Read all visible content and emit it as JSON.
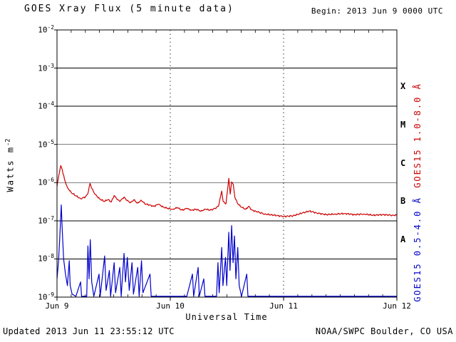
{
  "page": {
    "title": "GOES Xray Flux (5 minute data)",
    "begin_label": "Begin: 2013 Jun 9 0000 UTC",
    "updated_label": "Updated 2013 Jun 11 23:55:12 UTC",
    "credit_label": "NOAA/SWPC Boulder, CO USA"
  },
  "chart_data": {
    "type": "line",
    "title": "GOES Xray Flux (5 minute data)",
    "xlabel": "Universal Time",
    "ylabel_base": "Watts m",
    "ylabel_exp": "-2",
    "y_scale": "log",
    "xlim_hours": [
      0,
      72
    ],
    "ylim": [
      1e-09,
      0.01
    ],
    "x_ticks": {
      "hours": [
        0,
        24,
        48,
        72
      ],
      "labels": [
        "Jun 9",
        "Jun 10",
        "Jun 11",
        "Jun 12"
      ]
    },
    "y_ticks": {
      "base": "10",
      "values": [
        0.01,
        0.001,
        0.0001,
        1e-05,
        1e-06,
        1e-07,
        1e-08,
        1e-09
      ],
      "exponents": [
        "-2",
        "-3",
        "-4",
        "-5",
        "-6",
        "-7",
        "-8",
        "-9"
      ]
    },
    "flare_classes": [
      {
        "label": "X",
        "center_log10": -3.5
      },
      {
        "label": "M",
        "center_log10": -4.5
      },
      {
        "label": "C",
        "center_log10": -5.5
      },
      {
        "label": "B",
        "center_log10": -6.5
      },
      {
        "label": "A",
        "center_log10": -7.5
      }
    ],
    "grid": {
      "horizontal_solid_at_each_decade": true,
      "vertical_dashed_hours": [
        24,
        48
      ],
      "minor_tick_step_hours": 3
    },
    "series": [
      {
        "name": "GOES15 1.0-8.0 Å",
        "color": "#cc0000",
        "points": [
          [
            0,
            8e-07
          ],
          [
            0.4,
            1.6e-06
          ],
          [
            0.8,
            2.8e-06
          ],
          [
            1.1,
            2.2e-06
          ],
          [
            1.6,
            1.2e-06
          ],
          [
            2.2,
            7.5e-07
          ],
          [
            3.0,
            5.5e-07
          ],
          [
            4.0,
            4.5e-07
          ],
          [
            5.0,
            3.8e-07
          ],
          [
            6.0,
            4.2e-07
          ],
          [
            6.5,
            5e-07
          ],
          [
            7.0,
            9.5e-07
          ],
          [
            7.4,
            7e-07
          ],
          [
            8.0,
            5e-07
          ],
          [
            9.0,
            3.8e-07
          ],
          [
            10.0,
            3.2e-07
          ],
          [
            10.8,
            3.6e-07
          ],
          [
            11.5,
            3.1e-07
          ],
          [
            12.1,
            4.6e-07
          ],
          [
            12.6,
            3.8e-07
          ],
          [
            13.3,
            3.2e-07
          ],
          [
            14.2,
            4.2e-07
          ],
          [
            14.8,
            3.4e-07
          ],
          [
            15.6,
            3e-07
          ],
          [
            16.3,
            3.6e-07
          ],
          [
            17.0,
            2.9e-07
          ],
          [
            17.9,
            3.4e-07
          ],
          [
            18.6,
            2.8e-07
          ],
          [
            19.5,
            2.6e-07
          ],
          [
            20.5,
            2.4e-07
          ],
          [
            21.5,
            2.7e-07
          ],
          [
            22.5,
            2.3e-07
          ],
          [
            23.5,
            2.1e-07
          ],
          [
            24.5,
            2e-07
          ],
          [
            25.5,
            2.2e-07
          ],
          [
            26.5,
            1.9e-07
          ],
          [
            27.5,
            2.1e-07
          ],
          [
            28.5,
            1.9e-07
          ],
          [
            29.5,
            2e-07
          ],
          [
            30.5,
            1.8e-07
          ],
          [
            31.5,
            2e-07
          ],
          [
            32.5,
            1.9e-07
          ],
          [
            33.5,
            2.1e-07
          ],
          [
            34.2,
            2.4e-07
          ],
          [
            34.9,
            6e-07
          ],
          [
            35.2,
            3.2e-07
          ],
          [
            35.8,
            2.8e-07
          ],
          [
            36.4,
            1.3e-06
          ],
          [
            36.7,
            5e-07
          ],
          [
            37.0,
            1.05e-06
          ],
          [
            37.35,
            9e-07
          ],
          [
            37.7,
            4e-07
          ],
          [
            38.3,
            2.8e-07
          ],
          [
            39.0,
            2.3e-07
          ],
          [
            40.0,
            2e-07
          ],
          [
            40.6,
            2.4e-07
          ],
          [
            41.3,
            1.9e-07
          ],
          [
            42.5,
            1.7e-07
          ],
          [
            44,
            1.5e-07
          ],
          [
            46,
            1.4e-07
          ],
          [
            48,
            1.3e-07
          ],
          [
            50,
            1.35e-07
          ],
          [
            52,
            1.6e-07
          ],
          [
            53.5,
            1.8e-07
          ],
          [
            55,
            1.6e-07
          ],
          [
            57,
            1.45e-07
          ],
          [
            59,
            1.5e-07
          ],
          [
            61,
            1.55e-07
          ],
          [
            63,
            1.45e-07
          ],
          [
            65,
            1.5e-07
          ],
          [
            67,
            1.4e-07
          ],
          [
            69,
            1.45e-07
          ],
          [
            71,
            1.4e-07
          ],
          [
            72,
            1.4e-07
          ]
        ]
      },
      {
        "name": "GOES15 0.5-4.0 Å",
        "color": "#0000cc",
        "points": [
          [
            0,
            3e-09
          ],
          [
            0.3,
            8e-09
          ],
          [
            0.6,
            4e-08
          ],
          [
            0.9,
            2.6e-07
          ],
          [
            1.1,
            6e-08
          ],
          [
            1.4,
            1e-08
          ],
          [
            1.8,
            4e-09
          ],
          [
            2.2,
            2e-09
          ],
          [
            2.6,
            9e-09
          ],
          [
            2.8,
            2e-09
          ],
          [
            3.2,
            1.2e-09
          ],
          [
            4.0,
            1.05e-09
          ],
          [
            5.0,
            2.5e-09
          ],
          [
            5.2,
            1.05e-09
          ],
          [
            6.3,
            1.05e-09
          ],
          [
            6.55,
            2.2e-08
          ],
          [
            6.8,
            3e-09
          ],
          [
            7.05,
            3.2e-08
          ],
          [
            7.35,
            2.5e-09
          ],
          [
            7.8,
            1.05e-09
          ],
          [
            8.9,
            4e-09
          ],
          [
            9.15,
            1.05e-09
          ],
          [
            10.1,
            1.2e-08
          ],
          [
            10.4,
            1.5e-09
          ],
          [
            11.1,
            5e-09
          ],
          [
            11.35,
            1.05e-09
          ],
          [
            12.1,
            8e-09
          ],
          [
            12.4,
            1.3e-09
          ],
          [
            13.3,
            6e-09
          ],
          [
            13.6,
            1.05e-09
          ],
          [
            14.2,
            1.4e-08
          ],
          [
            14.5,
            2.5e-09
          ],
          [
            14.9,
            1.1e-08
          ],
          [
            15.3,
            1.5e-09
          ],
          [
            15.9,
            8e-09
          ],
          [
            16.2,
            1.2e-09
          ],
          [
            17.1,
            6e-09
          ],
          [
            17.4,
            1.05e-09
          ],
          [
            17.9,
            9e-09
          ],
          [
            18.2,
            1.3e-09
          ],
          [
            19.7,
            4e-09
          ],
          [
            19.95,
            1.05e-09
          ],
          [
            21,
            1.05e-09
          ],
          [
            24,
            1.05e-09
          ],
          [
            27.5,
            1.05e-09
          ],
          [
            28.7,
            4e-09
          ],
          [
            28.95,
            1.05e-09
          ],
          [
            29.9,
            6e-09
          ],
          [
            30.15,
            1.05e-09
          ],
          [
            31.1,
            3e-09
          ],
          [
            31.35,
            1.05e-09
          ],
          [
            33.8,
            1.05e-09
          ],
          [
            34.1,
            8e-09
          ],
          [
            34.35,
            1.3e-09
          ],
          [
            34.9,
            2e-08
          ],
          [
            35.15,
            2e-09
          ],
          [
            35.7,
            1.1e-08
          ],
          [
            35.95,
            2e-09
          ],
          [
            36.4,
            5e-08
          ],
          [
            36.65,
            5e-09
          ],
          [
            37.0,
            7.5e-08
          ],
          [
            37.3,
            8e-09
          ],
          [
            37.6,
            4e-08
          ],
          [
            37.9,
            3e-09
          ],
          [
            38.3,
            2e-08
          ],
          [
            38.6,
            2e-09
          ],
          [
            39.1,
            1.05e-09
          ],
          [
            40.2,
            4e-09
          ],
          [
            40.45,
            1.05e-09
          ],
          [
            44,
            1.05e-09
          ],
          [
            48,
            1.05e-09
          ],
          [
            56,
            1.05e-09
          ],
          [
            64,
            1.05e-09
          ],
          [
            72,
            1.05e-09
          ]
        ]
      }
    ]
  }
}
